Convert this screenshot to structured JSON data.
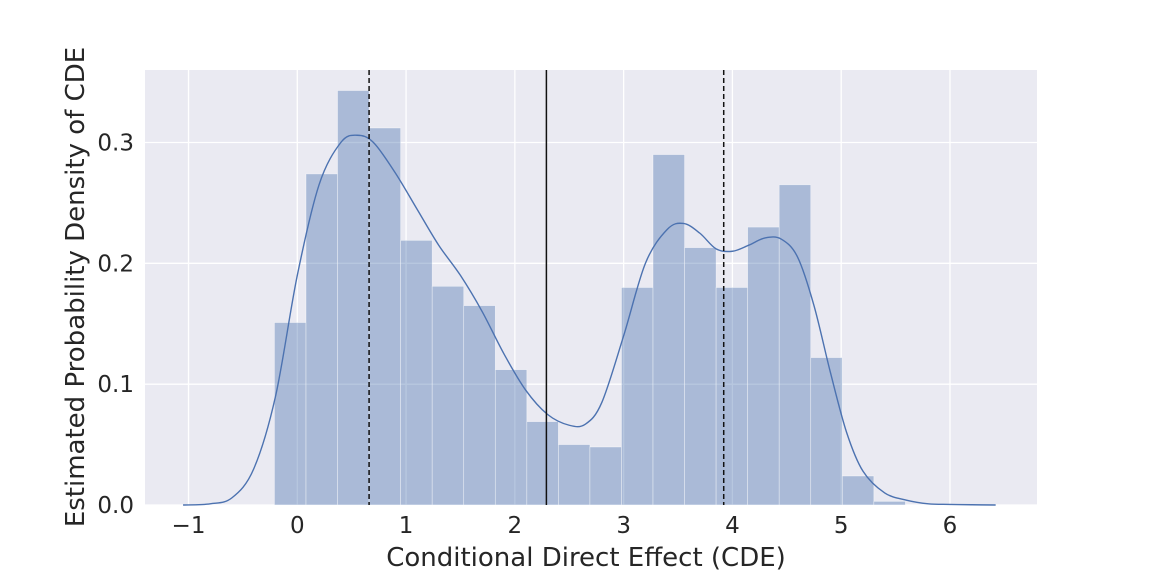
{
  "chart_data": {
    "type": "bar",
    "title": "",
    "xlabel": "Conditional Direct Effect (CDE)",
    "ylabel": "Estimated Probability Density of CDE",
    "xlim": [
      -1.4,
      6.8
    ],
    "ylim": [
      0,
      0.36
    ],
    "x_ticks": [
      -1,
      0,
      1,
      2,
      3,
      4,
      5,
      6
    ],
    "x_tick_labels": [
      "−1",
      "0",
      "1",
      "2",
      "3",
      "4",
      "5",
      "6"
    ],
    "y_ticks": [
      0.0,
      0.1,
      0.2,
      0.3
    ],
    "y_tick_labels": [
      "0.0",
      "0.1",
      "0.2",
      "0.3"
    ],
    "grid": true,
    "histogram": {
      "name": "CDE histogram",
      "bin_edges": [
        -0.21,
        0.08,
        0.37,
        0.66,
        0.95,
        1.24,
        1.53,
        1.82,
        2.11,
        2.4,
        2.69,
        2.98,
        3.27,
        3.56,
        3.85,
        4.14,
        4.43,
        4.72,
        5.01,
        5.3,
        5.59
      ],
      "density": [
        0.151,
        0.274,
        0.343,
        0.312,
        0.219,
        0.181,
        0.165,
        0.112,
        0.069,
        0.05,
        0.048,
        0.18,
        0.29,
        0.213,
        0.18,
        0.23,
        0.265,
        0.122,
        0.024,
        0.003
      ],
      "color": "#4c72b0",
      "opacity": 0.4
    },
    "kde": {
      "name": "Kernel density estimate",
      "x": [
        -1.05,
        -0.8,
        -0.6,
        -0.4,
        -0.2,
        0.0,
        0.2,
        0.4,
        0.55,
        0.7,
        0.9,
        1.1,
        1.3,
        1.5,
        1.7,
        1.9,
        2.1,
        2.3,
        2.5,
        2.65,
        2.8,
        3.0,
        3.2,
        3.4,
        3.55,
        3.7,
        3.85,
        4.0,
        4.15,
        4.3,
        4.45,
        4.6,
        4.75,
        4.9,
        5.05,
        5.2,
        5.4,
        5.6,
        5.8,
        6.0,
        6.2,
        6.42
      ],
      "y": [
        0.0,
        0.001,
        0.006,
        0.03,
        0.09,
        0.19,
        0.265,
        0.3,
        0.306,
        0.3,
        0.275,
        0.245,
        0.215,
        0.19,
        0.16,
        0.125,
        0.095,
        0.075,
        0.066,
        0.067,
        0.085,
        0.14,
        0.2,
        0.228,
        0.233,
        0.225,
        0.212,
        0.21,
        0.215,
        0.221,
        0.22,
        0.205,
        0.165,
        0.11,
        0.06,
        0.028,
        0.01,
        0.004,
        0.001,
        0.0005,
        0.0002,
        0.0
      ],
      "color": "#4c72b0"
    },
    "reference_lines": [
      {
        "name": "lower",
        "x": 0.66,
        "style": "dashed",
        "color": "#111111"
      },
      {
        "name": "center",
        "x": 2.29,
        "style": "solid",
        "color": "#111111"
      },
      {
        "name": "upper",
        "x": 3.92,
        "style": "dashed",
        "color": "#111111"
      }
    ],
    "colors": {
      "plot_background": "#eaeaf2",
      "grid": "#ffffff",
      "text": "#262626"
    }
  }
}
